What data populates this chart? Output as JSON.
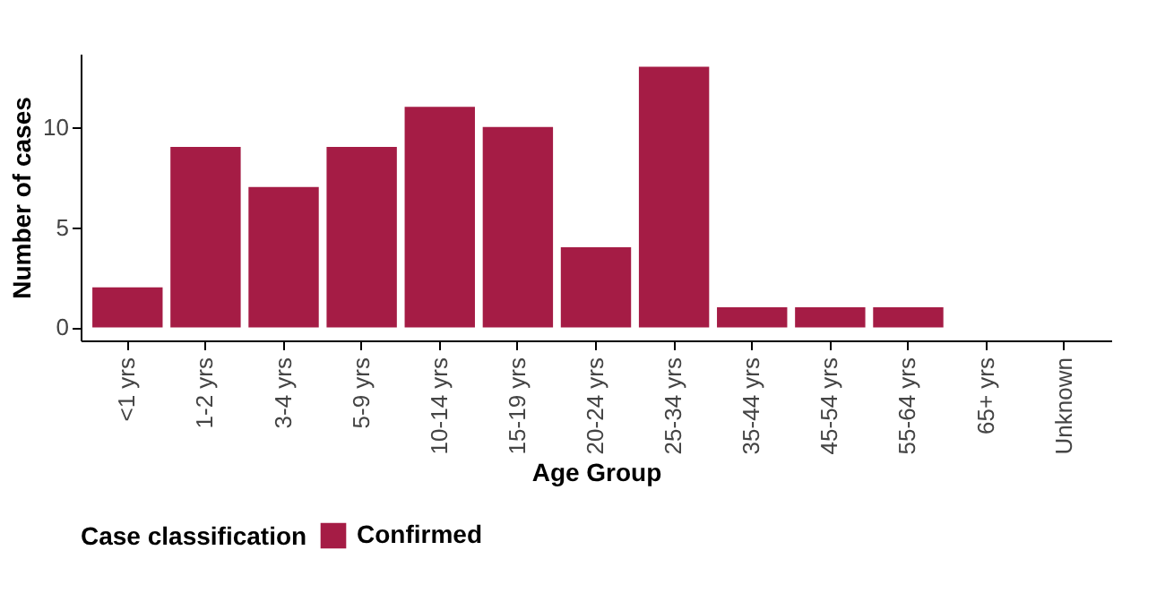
{
  "chart_data": {
    "type": "bar",
    "xlabel": "Age Group",
    "ylabel": "Number of cases",
    "legend_title": "Case classification",
    "categories": [
      "<1 yrs",
      "1-2 yrs",
      "3-4 yrs",
      "5-9 yrs",
      "10-14 yrs",
      "15-19 yrs",
      "20-24 yrs",
      "25-34 yrs",
      "35-44 yrs",
      "45-54 yrs",
      "55-64 yrs",
      "65+ yrs",
      "Unknown"
    ],
    "series": [
      {
        "name": "Confirmed",
        "color": "#a51c45",
        "values": [
          2,
          9,
          7,
          9,
          11,
          10,
          4,
          13,
          1,
          1,
          1,
          0,
          0
        ]
      }
    ],
    "ylim": [
      -0.65,
      13.65
    ],
    "yticks": [
      0,
      5,
      10
    ],
    "grid": false,
    "legend": "bottom"
  }
}
